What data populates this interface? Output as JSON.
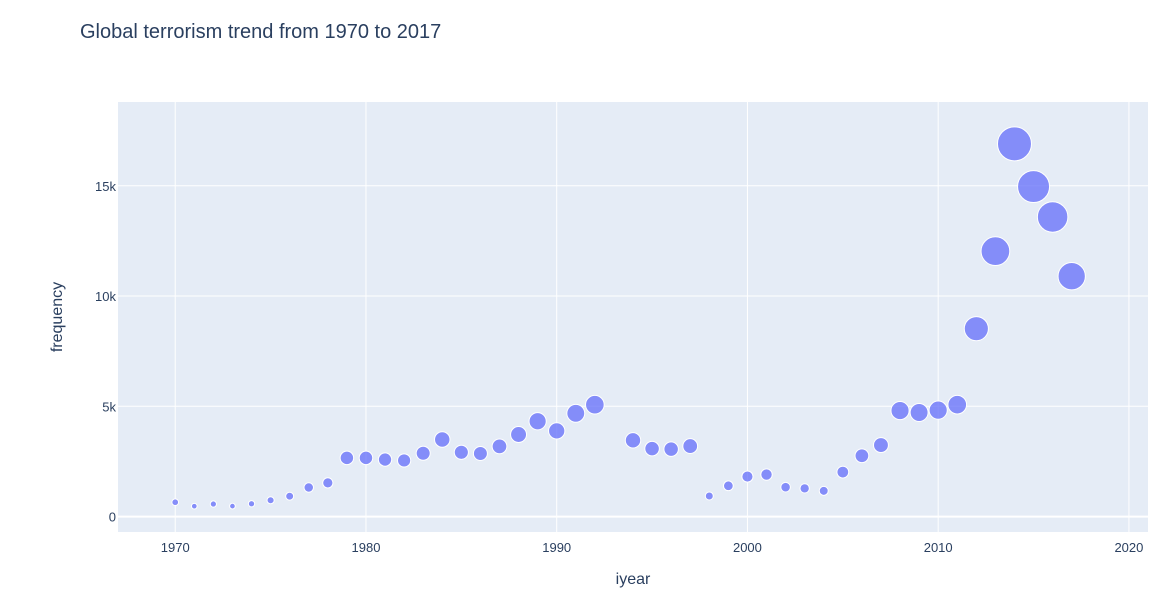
{
  "chart_data": {
    "type": "scatter",
    "title": "Global terrorism trend from 1970 to 2017",
    "xlabel": "iyear",
    "ylabel": "frequency",
    "xlim": [
      1967,
      2021
    ],
    "ylim": [
      -700,
      18800
    ],
    "x_ticks": [
      1970,
      1980,
      1990,
      2000,
      2010,
      2020
    ],
    "x_tick_labels": [
      "1970",
      "1980",
      "1990",
      "2000",
      "2010",
      "2020"
    ],
    "y_ticks": [
      0,
      5000,
      10000,
      15000
    ],
    "y_tick_labels": [
      "0",
      "5k",
      "10k",
      "15k"
    ],
    "grid": true,
    "marker_color": "#636efa",
    "marker_size": "proportional to frequency",
    "x": [
      1970,
      1971,
      1972,
      1973,
      1974,
      1975,
      1976,
      1977,
      1978,
      1979,
      1980,
      1981,
      1982,
      1983,
      1984,
      1985,
      1986,
      1987,
      1988,
      1989,
      1990,
      1991,
      1992,
      1994,
      1995,
      1996,
      1997,
      1998,
      1999,
      2000,
      2001,
      2002,
      2003,
      2004,
      2005,
      2006,
      2007,
      2008,
      2009,
      2010,
      2011,
      2012,
      2013,
      2014,
      2015,
      2016,
      2017
    ],
    "y": [
      651,
      471,
      568,
      473,
      581,
      740,
      923,
      1319,
      1526,
      2662,
      2662,
      2586,
      2544,
      2870,
      3495,
      2915,
      2860,
      3183,
      3721,
      4324,
      3887,
      4683,
      5071,
      3456,
      3081,
      3058,
      3197,
      934,
      1395,
      1814,
      1906,
      1333,
      1278,
      1166,
      2017,
      2758,
      3242,
      4805,
      4721,
      4826,
      5076,
      8522,
      12036,
      16903,
      14965,
      13587,
      10900
    ]
  }
}
